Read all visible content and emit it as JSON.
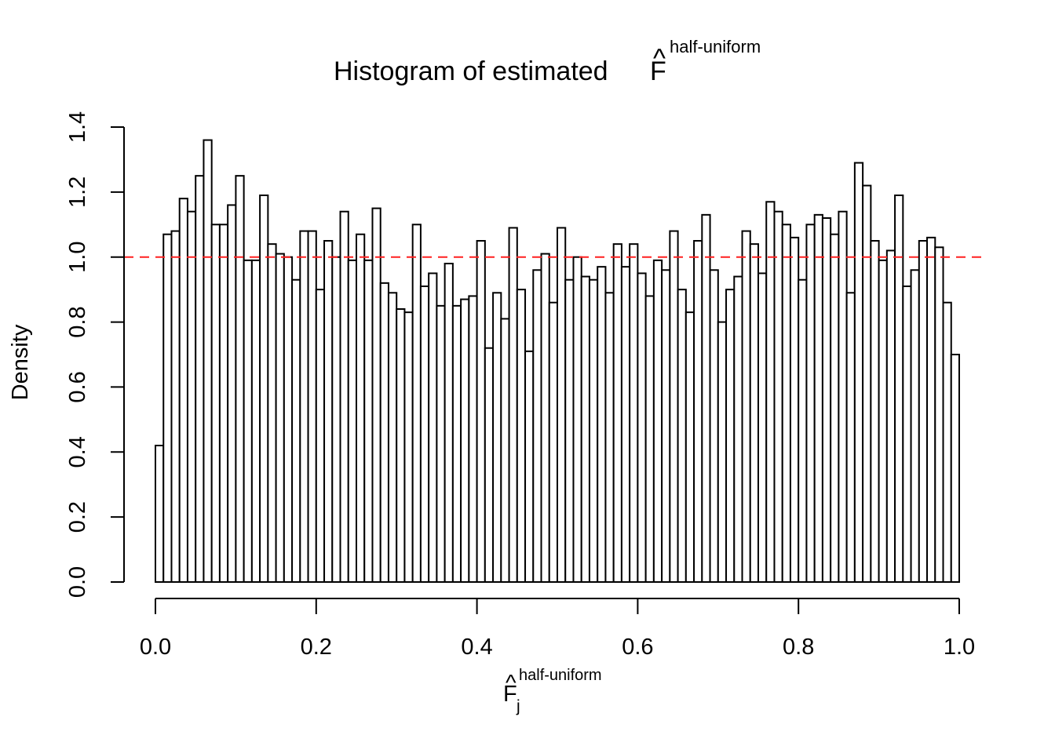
{
  "chart_data": {
    "type": "bar",
    "title": "Histogram of estimated",
    "title_symbol": "F",
    "title_hat": "^",
    "title_superscript": "half-uniform",
    "xlabel_symbol": "F",
    "xlabel_hat": "^",
    "xlabel_superscript": "half-uniform",
    "xlabel_subscript": "j",
    "ylabel": "Density",
    "xlim": [
      0,
      1
    ],
    "ylim": [
      0,
      1.4
    ],
    "bin_width": 0.01,
    "x_ticks": [
      "0.0",
      "0.2",
      "0.4",
      "0.6",
      "0.8",
      "1.0"
    ],
    "y_ticks": [
      "0.0",
      "0.2",
      "0.4",
      "0.6",
      "0.8",
      "1.0",
      "1.2",
      "1.4"
    ],
    "reference_line": {
      "y": 1.0,
      "color": "#ff2020",
      "style": "dashed"
    },
    "grid": false,
    "values": [
      0.42,
      1.07,
      1.08,
      1.18,
      1.14,
      1.25,
      1.36,
      1.1,
      1.1,
      1.16,
      1.25,
      0.99,
      0.99,
      1.19,
      1.04,
      1.01,
      1.0,
      0.93,
      1.08,
      1.08,
      0.9,
      1.05,
      1.0,
      1.14,
      0.99,
      1.07,
      0.99,
      1.15,
      0.92,
      0.89,
      0.84,
      0.83,
      1.1,
      0.91,
      0.95,
      0.85,
      0.98,
      0.85,
      0.87,
      0.88,
      1.05,
      0.72,
      0.89,
      0.81,
      1.09,
      0.9,
      0.71,
      0.96,
      1.01,
      0.86,
      1.09,
      0.93,
      1.0,
      0.94,
      0.93,
      0.97,
      0.89,
      1.04,
      0.97,
      1.04,
      0.95,
      0.88,
      0.99,
      0.96,
      1.08,
      0.9,
      0.83,
      1.05,
      1.13,
      0.96,
      0.8,
      0.9,
      0.94,
      1.08,
      1.04,
      0.95,
      1.17,
      1.14,
      1.1,
      1.06,
      0.93,
      1.1,
      1.13,
      1.12,
      1.07,
      1.14,
      0.89,
      1.29,
      1.22,
      1.05,
      0.99,
      1.02,
      1.19,
      0.91,
      0.96,
      1.05,
      1.06,
      1.03,
      0.86,
      0.7
    ]
  }
}
